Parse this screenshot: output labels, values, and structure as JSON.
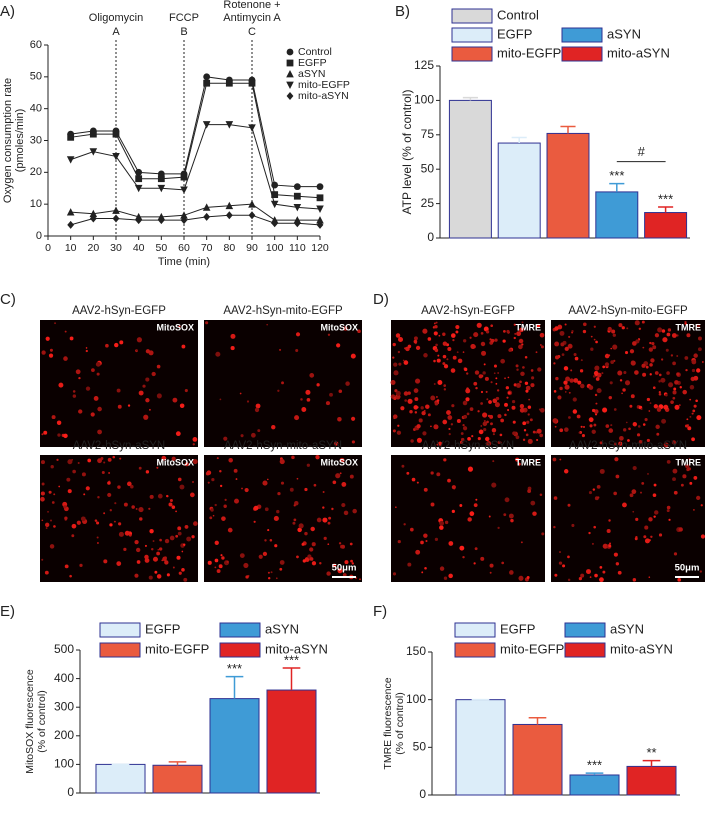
{
  "chart_data": [
    {
      "type": "line",
      "panel": "A)",
      "xlabel": "Time (min)",
      "ylabel": [
        "Oxygen consumption rate",
        "(pmoles/min)"
      ],
      "x": [
        10,
        20,
        30,
        40,
        50,
        60,
        70,
        80,
        90,
        100,
        110,
        120
      ],
      "xlim": [
        0,
        120
      ],
      "xticks": [
        0,
        10,
        20,
        30,
        40,
        50,
        60,
        70,
        80,
        90,
        100,
        110,
        120
      ],
      "ylim": [
        0,
        60
      ],
      "yticks": [
        0,
        10,
        20,
        30,
        40,
        50,
        60
      ],
      "annotations": [
        {
          "x": 30,
          "text": [
            "Oligomycin"
          ],
          "letter": "A"
        },
        {
          "x": 60,
          "text": [
            "FCCP"
          ],
          "letter": "B"
        },
        {
          "x": 90,
          "text": [
            "Rotenone +",
            "Antimycin A"
          ],
          "letter": "C"
        }
      ],
      "series": [
        {
          "name": "Control",
          "color": "#222222",
          "marker": "circle",
          "values": [
            32,
            33,
            33,
            20,
            19.5,
            19.5,
            50,
            49,
            49,
            16,
            15.5,
            15.5
          ]
        },
        {
          "name": "EGFP",
          "color": "#222222",
          "marker": "square",
          "values": [
            31,
            32,
            32,
            18,
            18,
            18.5,
            48,
            48,
            48,
            13,
            12.5,
            12
          ]
        },
        {
          "name": "aSYN",
          "color": "#222222",
          "marker": "triangle",
          "values": [
            7.5,
            7,
            8,
            6,
            6,
            6.5,
            9,
            9.5,
            10,
            5,
            5,
            5
          ]
        },
        {
          "name": "mito-EGFP",
          "color": "#222222",
          "marker": "triangle-down",
          "values": [
            24,
            26.5,
            25,
            15,
            15,
            14.5,
            35,
            35,
            34,
            10,
            9,
            8.5
          ]
        },
        {
          "name": "mito-aSYN",
          "color": "#222222",
          "marker": "diamond",
          "values": [
            3.5,
            5.5,
            5.5,
            5,
            5,
            5,
            6,
            6.5,
            6.5,
            4,
            4,
            3.5
          ]
        }
      ]
    },
    {
      "type": "bar",
      "panel": "B)",
      "ylabel": [
        "ATP level (% of control)"
      ],
      "categories": [
        "Control",
        "EGFP",
        "mito-EGFP",
        "aSYN",
        "mito-aSYN"
      ],
      "values": [
        100,
        69,
        76,
        33.5,
        18.5
      ],
      "errors": [
        2,
        4,
        5,
        6,
        4
      ],
      "colors": [
        "#d9d9d9",
        "#dcedf9",
        "#ea5b3f",
        "#3f9bd6",
        "#e02424"
      ],
      "significance": [
        null,
        null,
        null,
        "***",
        "***"
      ],
      "comparison": {
        "label": "#",
        "between": [
          "aSYN",
          "mito-aSYN"
        ]
      },
      "ylim": [
        0,
        125
      ],
      "yticks": [
        0,
        25,
        50,
        75,
        100,
        125
      ]
    },
    {
      "type": "bar",
      "panel": "E)",
      "ylabel": [
        "MitoSOX fluorescence",
        "(% of control)"
      ],
      "categories": [
        "EGFP",
        "mito-EGFP",
        "aSYN",
        "mito-aSYN"
      ],
      "values": [
        100,
        97,
        330,
        360
      ],
      "errors": [
        0,
        12,
        77,
        77
      ],
      "colors": [
        "#dcedf9",
        "#ea5b3f",
        "#3f9bd6",
        "#e02424"
      ],
      "significance": [
        null,
        null,
        "***",
        "***"
      ],
      "ylim": [
        0,
        500
      ],
      "yticks": [
        0,
        100,
        200,
        300,
        400,
        500
      ]
    },
    {
      "type": "bar",
      "panel": "F)",
      "ylabel": [
        "TMRE fluorescence",
        "(% of control)"
      ],
      "categories": [
        "EGFP",
        "mito-EGFP",
        "aSYN",
        "mito-aSYN"
      ],
      "values": [
        100,
        74,
        21,
        30
      ],
      "errors": [
        0,
        7,
        2,
        6
      ],
      "colors": [
        "#dcedf9",
        "#ea5b3f",
        "#3f9bd6",
        "#e02424"
      ],
      "significance": [
        null,
        null,
        "***",
        "**"
      ],
      "ylim": [
        0,
        150
      ],
      "yticks": [
        0,
        50,
        100,
        150
      ]
    }
  ],
  "image_panels": [
    {
      "panel": "C)",
      "stain": "MitoSOX",
      "scale_bar": "50μm",
      "images": [
        {
          "title": "AAV2-hSyn-EGFP"
        },
        {
          "title": "AAV2-hSyn-mito-EGFP"
        },
        {
          "title": "AAV2-hSyn-aSYN"
        },
        {
          "title": "AAV2-hSyn-mito-aSYN"
        }
      ]
    },
    {
      "panel": "D)",
      "stain": "TMRE",
      "scale_bar": "50μm",
      "images": [
        {
          "title": "AAV2-hSyn-EGFP"
        },
        {
          "title": "AAV2-hSyn-mito-EGFP"
        },
        {
          "title": "AAV2-hSyn-aSYN"
        },
        {
          "title": "AAV2-hSyn-mito-aSYN"
        }
      ]
    }
  ]
}
